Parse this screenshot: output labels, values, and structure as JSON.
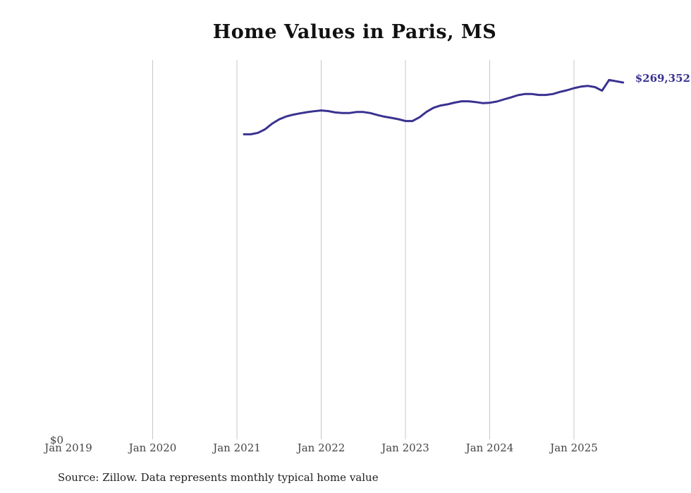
{
  "chart_data": {
    "type": "line",
    "title": "Home Values in Paris, MS",
    "source": "Source: Zillow. Data represents monthly typical home value",
    "xlabel": "",
    "ylabel": "",
    "x_ticks": [
      "Jan 2019",
      "Jan 2020",
      "Jan 2021",
      "Jan 2022",
      "Jan 2023",
      "Jan 2024",
      "Jan 2025"
    ],
    "y_ticks": [
      "$0"
    ],
    "ylim": [
      0,
      285000
    ],
    "xlim": [
      "2019-01",
      "2025-12"
    ],
    "grid": "vertical",
    "line_color": "#3a3291",
    "end_label": "$269,352",
    "series": [
      {
        "x": [
          "2021-02",
          "2021-03",
          "2021-04",
          "2021-05",
          "2021-06",
          "2021-07",
          "2021-08",
          "2021-09",
          "2021-10",
          "2021-11",
          "2021-12",
          "2022-01",
          "2022-02",
          "2022-03",
          "2022-04",
          "2022-05",
          "2022-06",
          "2022-07",
          "2022-08",
          "2022-09",
          "2022-10",
          "2022-11",
          "2022-12",
          "2023-01",
          "2023-02",
          "2023-03",
          "2023-04",
          "2023-05",
          "2023-06",
          "2023-07",
          "2023-08",
          "2023-09",
          "2023-10",
          "2023-11",
          "2023-12",
          "2024-01",
          "2024-02",
          "2024-03",
          "2024-04",
          "2024-05",
          "2024-06",
          "2024-07",
          "2024-08",
          "2024-09",
          "2024-10",
          "2024-11",
          "2024-12",
          "2025-01",
          "2025-02",
          "2025-03",
          "2025-04",
          "2025-05",
          "2025-06",
          "2025-07",
          "2025-08"
        ],
        "values": [
          230300,
          230300,
          231400,
          234000,
          238300,
          241500,
          243700,
          245100,
          246100,
          247000,
          247700,
          248300,
          247800,
          246800,
          246300,
          246300,
          247100,
          247100,
          246300,
          244800,
          243600,
          242700,
          241700,
          240300,
          240300,
          243100,
          247200,
          250300,
          252000,
          252900,
          254200,
          255200,
          255200,
          254600,
          253800,
          254100,
          255000,
          256600,
          258100,
          259800,
          260700,
          260700,
          260000,
          260000,
          260700,
          262300,
          263500,
          265100,
          266300,
          266800,
          265900,
          263200,
          271300,
          270300,
          269352
        ]
      }
    ]
  }
}
